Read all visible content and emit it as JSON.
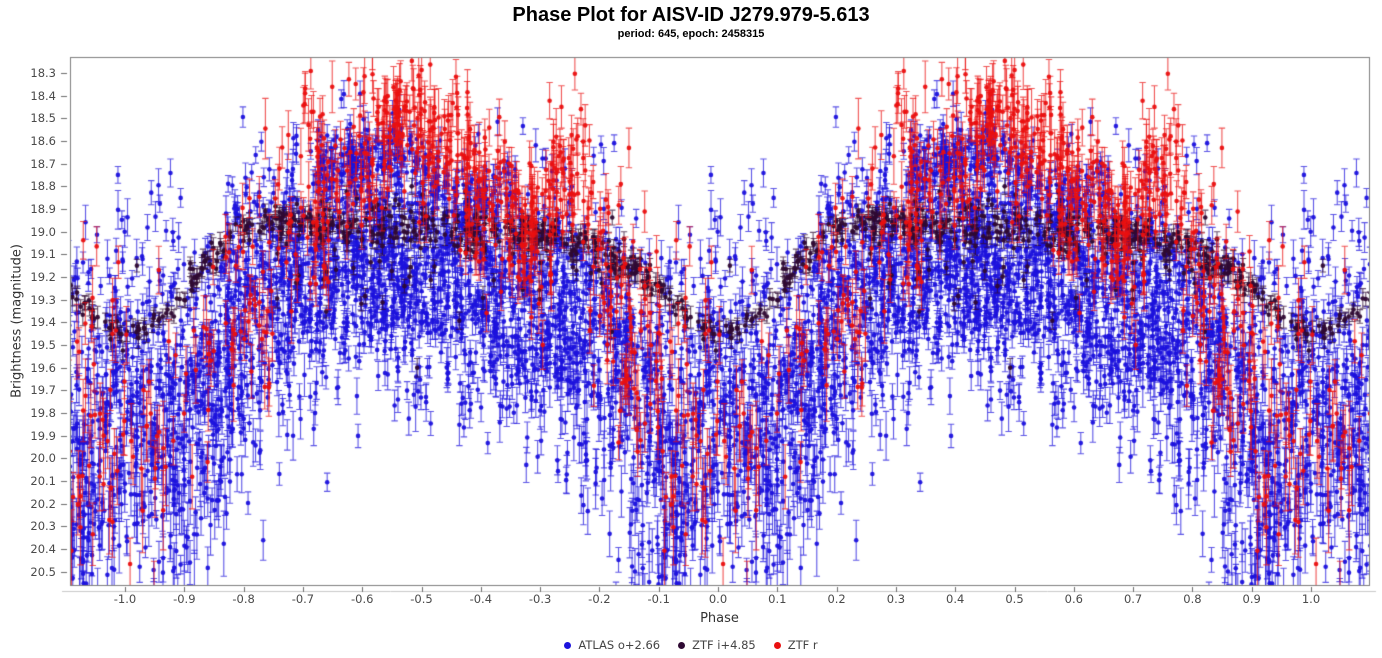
{
  "title": "Phase Plot for AISV-ID J279.979-5.613",
  "subtitle": "period: 645, epoch: 2458315",
  "chart_data": {
    "type": "scatter",
    "title": "Phase Plot for AISV-ID J279.979-5.613",
    "subtitle": "period: 645, epoch: 2458315",
    "xlabel": "Phase",
    "ylabel": "Brightness (magnitude)",
    "xlim": [
      -1.0928,
      1.0978
    ],
    "ylim": [
      18.2294,
      20.5588
    ],
    "y_inverted": true,
    "grid": false,
    "legend_position": "bottom-center",
    "x_ticks": [
      -1,
      -0.9,
      -0.8,
      -0.7,
      -0.6,
      -0.5,
      -0.4,
      -0.3,
      -0.2,
      -0.1,
      0,
      0.1,
      0.2,
      0.3,
      0.4,
      0.5,
      0.6,
      0.7,
      0.8,
      0.9,
      1
    ],
    "y_ticks": [
      18.3,
      18.4,
      18.5,
      18.6,
      18.7,
      18.8,
      18.9,
      19,
      19.1,
      19.2,
      19.3,
      19.4,
      19.5,
      19.6,
      19.7,
      19.8,
      19.9,
      20,
      20.1,
      20.2,
      20.3,
      20.4,
      20.5
    ],
    "frame_color": "#7d7d7d",
    "tick_color": "#6b6b6b",
    "baseline_color": "#c8c8c8",
    "seed": 987241,
    "phase_offsets": [
      -2,
      -1,
      0,
      1
    ],
    "legend": [
      {
        "label": "ATLAS o+2.66",
        "color": "#1c12dd"
      },
      {
        "label": "ZTF i+4.85",
        "color": "#2f0a33"
      },
      {
        "label": "ZTF r",
        "color": "#ea1010"
      }
    ],
    "series": [
      {
        "name": "ATLAS o+2.66",
        "color": "#1c12dd",
        "count": 2600,
        "mean": [
          [
            0,
            19.55
          ],
          [
            0.03,
            19.66
          ],
          [
            0.07,
            19.82
          ],
          [
            0.12,
            19.74
          ],
          [
            0.17,
            19.45
          ],
          [
            0.22,
            19.3
          ],
          [
            0.28,
            19.2
          ],
          [
            0.35,
            19.12
          ],
          [
            0.42,
            19.1
          ],
          [
            0.5,
            19.16
          ],
          [
            0.58,
            19.2
          ],
          [
            0.65,
            19.26
          ],
          [
            0.72,
            19.32
          ],
          [
            0.78,
            19.42
          ],
          [
            0.84,
            19.58
          ],
          [
            0.9,
            19.82
          ],
          [
            0.95,
            19.92
          ],
          [
            1,
            19.58
          ]
        ],
        "sigma": [
          [
            0,
            0.34
          ],
          [
            0.07,
            0.4
          ],
          [
            0.15,
            0.33
          ],
          [
            0.3,
            0.27
          ],
          [
            0.5,
            0.24
          ],
          [
            0.7,
            0.27
          ],
          [
            0.85,
            0.36
          ],
          [
            1,
            0.38
          ]
        ],
        "density": [
          [
            0,
            0.8
          ],
          [
            0.15,
            1
          ],
          [
            0.85,
            1
          ],
          [
            1,
            0.85
          ]
        ],
        "tail": {
          "prob": [
            [
              0,
              0.28
            ],
            [
              0.1,
              0.28
            ],
            [
              0.2,
              0.12
            ],
            [
              0.7,
              0.12
            ],
            [
              0.85,
              0.28
            ],
            [
              1,
              0.3
            ]
          ],
          "max": 0.85
        },
        "err": {
          "base": 0.035,
          "rand": 0.06,
          "faint_scale": 0.1,
          "faint_ref": 19.4
        },
        "clusters": [
          {
            "count": 150,
            "p0": 0.32,
            "p1": 0.47,
            "m0": 18.74,
            "m1": 18.63,
            "sigma": 0.07
          },
          {
            "count": 70,
            "p0": 0.47,
            "p1": 0.58,
            "m0": 18.7,
            "m1": 18.92,
            "sigma": 0.09
          },
          {
            "count": 40,
            "p0": 0.58,
            "p1": 0.66,
            "m0": 18.85,
            "m1": 18.8,
            "sigma": 0.08
          }
        ],
        "points": []
      },
      {
        "name": "ZTF i+4.85",
        "color": "#2f0a33",
        "count": 400,
        "mean": [
          [
            0,
            19.46
          ],
          [
            0.04,
            19.43
          ],
          [
            0.08,
            19.33
          ],
          [
            0.12,
            19.2
          ],
          [
            0.16,
            19.08
          ],
          [
            0.2,
            19.0
          ],
          [
            0.25,
            18.96
          ],
          [
            0.3,
            18.97
          ],
          [
            0.4,
            18.98
          ],
          [
            0.5,
            18.96
          ],
          [
            0.6,
            19.0
          ],
          [
            0.7,
            19.01
          ],
          [
            0.78,
            19.05
          ],
          [
            0.84,
            19.12
          ],
          [
            0.9,
            19.25
          ],
          [
            0.95,
            19.38
          ],
          [
            1,
            19.46
          ]
        ],
        "sigma": [
          [
            0,
            0.025
          ],
          [
            0.2,
            0.035
          ],
          [
            0.5,
            0.05
          ],
          [
            0.8,
            0.04
          ],
          [
            1,
            0.025
          ]
        ],
        "density": [
          [
            0,
            1
          ],
          [
            1,
            1
          ]
        ],
        "tail": {
          "prob": [
            [
              0,
              0.02
            ],
            [
              1,
              0.02
            ]
          ],
          "max": 0.5
        },
        "err": {
          "base": 0.028,
          "rand": 0.03,
          "faint_scale": 0.02,
          "faint_ref": 19.3
        },
        "clusters": [
          {
            "count": 55,
            "p0": 0.25,
            "p1": 0.85,
            "m0": 19.12,
            "m1": 19.2,
            "sigma": 0.16
          }
        ],
        "points": [
          [
            0.02,
            19.15
          ],
          [
            0.11,
            19.14
          ]
        ]
      },
      {
        "name": "ZTF r",
        "color": "#ea1010",
        "count": 640,
        "mean": [
          [
            0,
            19.8
          ],
          [
            0.05,
            19.85
          ],
          [
            0.1,
            19.68
          ],
          [
            0.15,
            19.45
          ],
          [
            0.2,
            19.3
          ],
          [
            0.25,
            19.15
          ],
          [
            0.3,
            18.97
          ],
          [
            0.35,
            18.8
          ],
          [
            0.4,
            18.58
          ],
          [
            0.45,
            18.5
          ],
          [
            0.5,
            18.56
          ],
          [
            0.55,
            18.68
          ],
          [
            0.6,
            18.8
          ],
          [
            0.65,
            18.92
          ],
          [
            0.68,
            19.0
          ],
          [
            0.72,
            18.82
          ],
          [
            0.76,
            18.72
          ],
          [
            0.8,
            19.1
          ],
          [
            0.85,
            19.38
          ],
          [
            0.9,
            19.6
          ],
          [
            0.95,
            19.78
          ],
          [
            1,
            19.8
          ]
        ],
        "sigma": [
          [
            0,
            0.28
          ],
          [
            0.1,
            0.28
          ],
          [
            0.2,
            0.24
          ],
          [
            0.35,
            0.2
          ],
          [
            0.45,
            0.14
          ],
          [
            0.6,
            0.18
          ],
          [
            0.75,
            0.16
          ],
          [
            0.85,
            0.28
          ],
          [
            1,
            0.3
          ]
        ],
        "density": [
          [
            0,
            0.45
          ],
          [
            0.25,
            0.5
          ],
          [
            0.3,
            1
          ],
          [
            0.45,
            1.6
          ],
          [
            0.6,
            1.4
          ],
          [
            0.8,
            1.2
          ],
          [
            0.9,
            0.9
          ],
          [
            1,
            0.5
          ]
        ],
        "tail": {
          "prob": [
            [
              0,
              0.15
            ],
            [
              1,
              0.15
            ]
          ],
          "max": 0.6
        },
        "err": {
          "base": 0.07,
          "rand": 0.09,
          "faint_scale": 0.12,
          "faint_ref": 19.2
        },
        "clusters": [
          {
            "count": 14,
            "p0": 0.3,
            "p1": 0.335,
            "m0": 18.42,
            "m1": 18.5,
            "sigma": 0.09
          }
        ],
        "points": []
      }
    ]
  }
}
